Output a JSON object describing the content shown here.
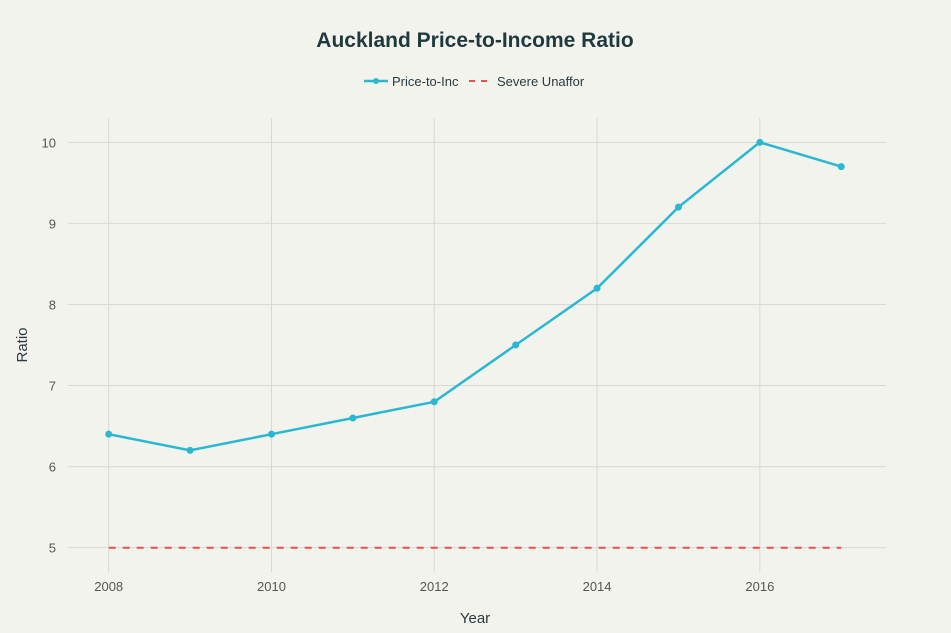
{
  "chart_data": {
    "type": "line",
    "title": "Auckland Price-to-Income Ratio",
    "xlabel": "Year",
    "ylabel": "Ratio",
    "x": [
      2008,
      2009,
      2010,
      2011,
      2012,
      2013,
      2014,
      2015,
      2016,
      2017
    ],
    "series": [
      {
        "name": "Price-to-Inc",
        "values": [
          6.4,
          6.2,
          6.4,
          6.6,
          6.8,
          7.5,
          8.2,
          9.2,
          10.0,
          9.7
        ],
        "color": "#2ab8d0",
        "style": "solid",
        "markers": true
      },
      {
        "name": "Severe Unaffor",
        "values": [
          5,
          5,
          5,
          5,
          5,
          5,
          5,
          5,
          5,
          5
        ],
        "color": "#e8504a",
        "style": "dashed",
        "markers": false
      }
    ],
    "xticks": [
      "2008",
      "2010",
      "2012",
      "2014",
      "2016"
    ],
    "yticks": [
      "5",
      "6",
      "7",
      "8",
      "9",
      "10"
    ],
    "xlim": [
      2007.5,
      2017.55
    ],
    "ylim": [
      4.7,
      10.3
    ],
    "grid": true,
    "legend_position": "top-center"
  }
}
